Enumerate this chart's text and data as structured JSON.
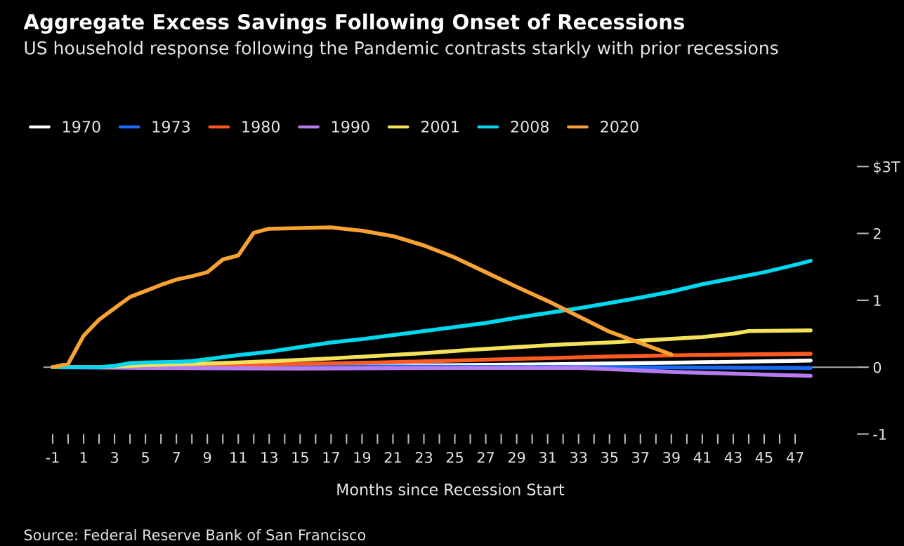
{
  "chart_data": {
    "type": "line",
    "title": "Aggregate Excess Savings Following Onset of Recessions",
    "subtitle": "US household response following the Pandemic contrasts starkly with prior recessions",
    "xlabel": "Months since Recession Start",
    "annotations": [
      "Source: Federal Reserve Bank of San Francisco"
    ],
    "series": [
      {
        "name": "1970",
        "color": "#ffffff",
        "x": [
          -1,
          10,
          20,
          30,
          40,
          48
        ],
        "values": [
          0,
          0.0,
          0.02,
          0.04,
          0.07,
          0.1
        ]
      },
      {
        "name": "1973",
        "color": "#1a6cff",
        "x": [
          -1,
          20,
          35,
          48
        ],
        "values": [
          0,
          0.01,
          0.0,
          -0.01
        ]
      },
      {
        "name": "1980",
        "color": "#ff5a1f",
        "x": [
          -1,
          5,
          10,
          15,
          20,
          25,
          30,
          35,
          40,
          48
        ],
        "values": [
          0,
          0.01,
          0.03,
          0.05,
          0.07,
          0.1,
          0.13,
          0.16,
          0.18,
          0.2
        ]
      },
      {
        "name": "1990",
        "color": "#b77bf0",
        "x": [
          -1,
          5,
          15,
          25,
          33,
          36,
          39,
          42,
          45,
          48
        ],
        "values": [
          0,
          -0.01,
          -0.02,
          -0.01,
          -0.01,
          -0.04,
          -0.07,
          -0.09,
          -0.11,
          -0.13
        ]
      },
      {
        "name": "2001",
        "color": "#f5e15a",
        "x": [
          -1,
          2,
          3,
          5,
          8,
          11,
          14,
          17,
          20,
          23,
          26,
          29,
          32,
          35,
          38,
          41,
          43,
          44,
          48
        ],
        "values": [
          0,
          0,
          0.01,
          0.03,
          0.05,
          0.07,
          0.1,
          0.13,
          0.17,
          0.21,
          0.26,
          0.3,
          0.34,
          0.37,
          0.41,
          0.45,
          0.5,
          0.54,
          0.55
        ]
      },
      {
        "name": "2008",
        "color": "#00d8f0",
        "x": [
          -1,
          2,
          3,
          4,
          5,
          7,
          8,
          9,
          11,
          13,
          15,
          17,
          19,
          21,
          23,
          25,
          27,
          29,
          31,
          33,
          35,
          37,
          39,
          41,
          43,
          45,
          47,
          48
        ],
        "values": [
          0,
          0,
          0.02,
          0.06,
          0.07,
          0.08,
          0.09,
          0.12,
          0.18,
          0.23,
          0.3,
          0.37,
          0.42,
          0.48,
          0.54,
          0.6,
          0.66,
          0.74,
          0.81,
          0.88,
          0.96,
          1.04,
          1.13,
          1.24,
          1.33,
          1.42,
          1.53,
          1.59
        ]
      },
      {
        "name": "2020",
        "color": "#f7a233",
        "x": [
          -1,
          0,
          1,
          2,
          3,
          4,
          5,
          6,
          7,
          8,
          9,
          10,
          11,
          12,
          13,
          15,
          17,
          19,
          21,
          23,
          25,
          27,
          29,
          31,
          33,
          35,
          37,
          39
        ],
        "values": [
          0,
          0.05,
          0.47,
          0.71,
          0.88,
          1.05,
          1.14,
          1.23,
          1.31,
          1.36,
          1.42,
          1.61,
          1.67,
          2.01,
          2.07,
          2.08,
          2.09,
          2.04,
          1.96,
          1.82,
          1.64,
          1.42,
          1.2,
          0.99,
          0.76,
          0.53,
          0.36,
          0.19
        ]
      }
    ],
    "xlim": [
      -1.6,
      51
    ],
    "xticks": [
      -1,
      {
        "value": 0,
        "label": null
      },
      1,
      {
        "value": 2,
        "label": null
      },
      3,
      {
        "value": 4,
        "label": null
      },
      5,
      {
        "value": 6,
        "label": null
      },
      7,
      {
        "value": 8,
        "label": null
      },
      9,
      {
        "value": 10,
        "label": null
      },
      11,
      {
        "value": 12,
        "label": null
      },
      13,
      {
        "value": 14,
        "label": null
      },
      15,
      {
        "value": 16,
        "label": null
      },
      17,
      {
        "value": 18,
        "label": null
      },
      19,
      {
        "value": 20,
        "label": null
      },
      21,
      {
        "value": 22,
        "label": null
      },
      23,
      {
        "value": 24,
        "label": null
      },
      25,
      {
        "value": 26,
        "label": null
      },
      27,
      {
        "value": 28,
        "label": null
      },
      29,
      {
        "value": 30,
        "label": null
      },
      31,
      {
        "value": 32,
        "label": null
      },
      33,
      {
        "value": 34,
        "label": null
      },
      35,
      {
        "value": 36,
        "label": null
      },
      37,
      {
        "value": 38,
        "label": null
      },
      39,
      {
        "value": 40,
        "label": null
      },
      41,
      {
        "value": 42,
        "label": null
      },
      43,
      {
        "value": 44,
        "label": null
      },
      45,
      {
        "value": 46,
        "label": null
      },
      47
    ],
    "ylim": [
      -1,
      3
    ],
    "yticks": [
      -1,
      0,
      1,
      2,
      {
        "value": 3,
        "label": "$3T"
      }
    ],
    "ref_lines": [
      {
        "axis": "y",
        "value": 0,
        "color": "#aaaaaa"
      }
    ],
    "legend": "top left",
    "grid": false,
    "line_style": "solid",
    "marker": "none"
  }
}
